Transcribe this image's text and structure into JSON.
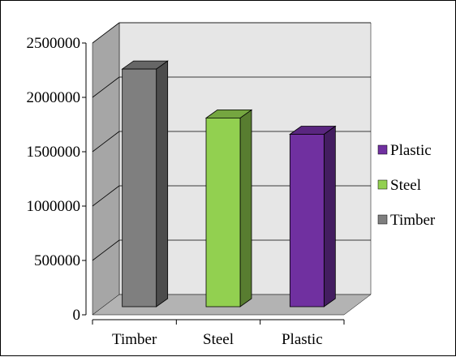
{
  "chart_data": {
    "type": "bar",
    "title": "",
    "xlabel": "",
    "ylabel": "",
    "categories": [
      "Timber",
      "Steel",
      "Plastic"
    ],
    "values": [
      2350000,
      1900000,
      1750000
    ],
    "ylim": [
      0,
      2500000
    ],
    "yticks": [
      0,
      500000,
      1000000,
      1500000,
      2000000,
      2500000
    ],
    "ytick_labels": [
      "0",
      "500000",
      "1000000",
      "1500000",
      "2000000",
      "2500000"
    ],
    "colors": {
      "Timber": "#7f7f7f",
      "Steel": "#92d050",
      "Plastic": "#7030a0"
    },
    "legend": {
      "position": "right",
      "entries": [
        "Plastic",
        "Steel",
        "Timber"
      ]
    },
    "grid": true,
    "projection": "3d"
  }
}
